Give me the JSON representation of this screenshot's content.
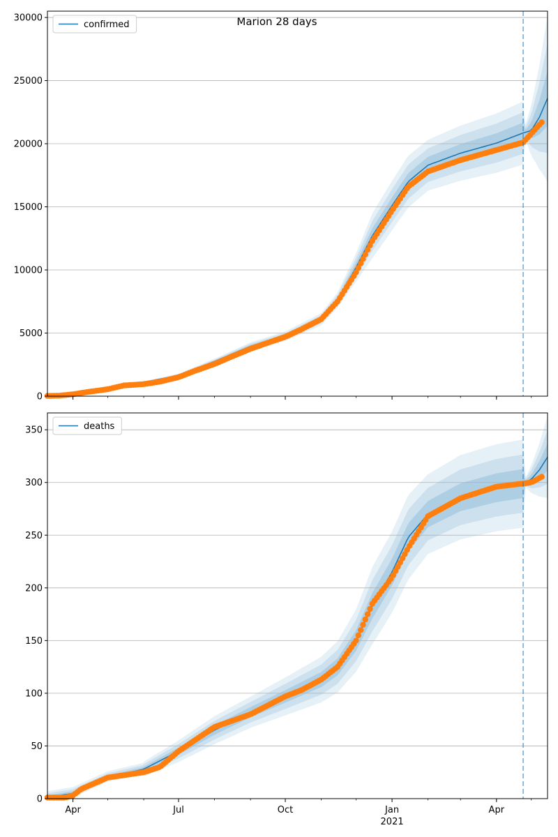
{
  "title": "Marion 28 days",
  "colors": {
    "model": "#1f77b4",
    "observed": "#ff7f0e",
    "grid": "#b0b0b0",
    "band": "#1f77b4"
  },
  "chart_data": [
    {
      "type": "line",
      "legend": {
        "label": "confirmed",
        "placement": "top-left"
      },
      "x_axis": {
        "start": "2020-03-10",
        "end": "2021-05-15",
        "tick_labels": [
          "Apr",
          "Jul",
          "Oct",
          "Jan",
          "Apr"
        ],
        "tick_dates": [
          "2020-04-01",
          "2020-07-01",
          "2020-10-01",
          "2021-01-01",
          "2021-04-01"
        ],
        "year_label": "2021"
      },
      "y_axis": {
        "min": 0,
        "max": 30500,
        "ticks": [
          0,
          5000,
          10000,
          15000,
          20000,
          25000,
          30000
        ]
      },
      "grid": "horizontal",
      "forecast_start": "2021-04-24",
      "model": [
        [
          "2020-03-10",
          20
        ],
        [
          "2020-04-01",
          180
        ],
        [
          "2020-05-01",
          650
        ],
        [
          "2020-06-01",
          1100
        ],
        [
          "2020-07-01",
          1650
        ],
        [
          "2020-08-01",
          2750
        ],
        [
          "2020-09-01",
          3950
        ],
        [
          "2020-10-01",
          4750
        ],
        [
          "2020-11-01",
          6100
        ],
        [
          "2020-11-15",
          7600
        ],
        [
          "2020-12-01",
          10200
        ],
        [
          "2020-12-15",
          12700
        ],
        [
          "2021-01-01",
          15100
        ],
        [
          "2021-01-15",
          17000
        ],
        [
          "2021-02-01",
          18300
        ],
        [
          "2021-03-01",
          19250
        ],
        [
          "2021-04-01",
          20050
        ],
        [
          "2021-04-24",
          20850
        ],
        [
          "2021-05-01",
          21050
        ],
        [
          "2021-05-08",
          22100
        ],
        [
          "2021-05-15",
          23600
        ]
      ],
      "band_spread": [
        [
          "2020-03-10",
          0.05
        ],
        [
          "2020-07-01",
          0.08
        ],
        [
          "2020-11-15",
          0.08
        ],
        [
          "2020-12-15",
          0.14
        ],
        [
          "2021-02-01",
          0.11
        ],
        [
          "2021-04-24",
          0.12
        ],
        [
          "2021-04-25",
          0.015
        ],
        [
          "2021-05-15",
          0.28
        ]
      ],
      "observed": [
        [
          "2020-03-10",
          20
        ],
        [
          "2020-03-20",
          40
        ],
        [
          "2020-04-01",
          150
        ],
        [
          "2020-04-15",
          350
        ],
        [
          "2020-05-01",
          550
        ],
        [
          "2020-05-15",
          850
        ],
        [
          "2020-06-01",
          950
        ],
        [
          "2020-06-15",
          1150
        ],
        [
          "2020-07-01",
          1500
        ],
        [
          "2020-07-15",
          2000
        ],
        [
          "2020-08-01",
          2550
        ],
        [
          "2020-08-15",
          3100
        ],
        [
          "2020-09-01",
          3750
        ],
        [
          "2020-09-15",
          4200
        ],
        [
          "2020-10-01",
          4700
        ],
        [
          "2020-10-15",
          5300
        ],
        [
          "2020-11-01",
          6100
        ],
        [
          "2020-11-15",
          7500
        ],
        [
          "2020-12-01",
          9800
        ],
        [
          "2020-12-15",
          12300
        ],
        [
          "2021-01-01",
          14700
        ],
        [
          "2021-01-15",
          16600
        ],
        [
          "2021-02-01",
          17800
        ],
        [
          "2021-03-01",
          18700
        ],
        [
          "2021-04-01",
          19500
        ],
        [
          "2021-04-24",
          20100
        ],
        [
          "2021-05-01",
          20800
        ],
        [
          "2021-05-08",
          21500
        ],
        [
          "2021-05-11",
          21800
        ]
      ]
    },
    {
      "type": "line",
      "legend": {
        "label": "deaths",
        "placement": "top-left"
      },
      "x_axis": {
        "start": "2020-03-10",
        "end": "2021-05-15",
        "tick_labels": [
          "Apr",
          "Jul",
          "Oct",
          "Jan",
          "Apr"
        ],
        "tick_dates": [
          "2020-04-01",
          "2020-07-01",
          "2020-10-01",
          "2021-01-01",
          "2021-04-01"
        ],
        "year_label": "2021"
      },
      "y_axis": {
        "min": 0,
        "max": 366,
        "ticks": [
          0,
          50,
          100,
          150,
          200,
          250,
          300,
          350
        ]
      },
      "grid": "horizontal",
      "forecast_start": "2021-04-24",
      "model": [
        [
          "2020-03-10",
          1
        ],
        [
          "2020-04-01",
          5
        ],
        [
          "2020-05-01",
          20
        ],
        [
          "2020-06-01",
          28
        ],
        [
          "2020-07-01",
          45
        ],
        [
          "2020-08-01",
          65
        ],
        [
          "2020-09-01",
          82
        ],
        [
          "2020-10-01",
          97
        ],
        [
          "2020-11-01",
          113
        ],
        [
          "2020-11-15",
          125
        ],
        [
          "2020-12-01",
          150
        ],
        [
          "2020-12-15",
          183
        ],
        [
          "2021-01-01",
          215
        ],
        [
          "2021-01-15",
          248
        ],
        [
          "2021-02-01",
          270
        ],
        [
          "2021-03-01",
          286
        ],
        [
          "2021-04-01",
          295
        ],
        [
          "2021-04-24",
          299
        ],
        [
          "2021-05-01",
          303
        ],
        [
          "2021-05-08",
          312
        ],
        [
          "2021-05-15",
          324
        ]
      ],
      "band_spread": [
        [
          "2020-03-10",
          1.0
        ],
        [
          "2020-06-01",
          0.25
        ],
        [
          "2020-09-01",
          0.18
        ],
        [
          "2020-12-15",
          0.2
        ],
        [
          "2021-02-01",
          0.14
        ],
        [
          "2021-04-24",
          0.14
        ],
        [
          "2021-04-25",
          0.01
        ],
        [
          "2021-05-15",
          0.12
        ]
      ],
      "observed": [
        [
          "2020-03-10",
          1
        ],
        [
          "2020-03-25",
          1
        ],
        [
          "2020-04-01",
          3
        ],
        [
          "2020-04-08",
          9
        ],
        [
          "2020-05-01",
          20
        ],
        [
          "2020-06-01",
          25
        ],
        [
          "2020-06-15",
          30
        ],
        [
          "2020-07-01",
          45
        ],
        [
          "2020-08-01",
          68
        ],
        [
          "2020-09-01",
          80
        ],
        [
          "2020-10-01",
          97
        ],
        [
          "2020-10-15",
          103
        ],
        [
          "2020-11-01",
          113
        ],
        [
          "2020-11-15",
          125
        ],
        [
          "2020-12-01",
          150
        ],
        [
          "2020-12-15",
          185
        ],
        [
          "2021-01-01",
          210
        ],
        [
          "2021-01-15",
          238
        ],
        [
          "2021-02-01",
          268
        ],
        [
          "2021-03-01",
          285
        ],
        [
          "2021-04-01",
          296
        ],
        [
          "2021-04-24",
          299
        ],
        [
          "2021-05-01",
          300
        ],
        [
          "2021-05-11",
          306
        ]
      ]
    }
  ]
}
